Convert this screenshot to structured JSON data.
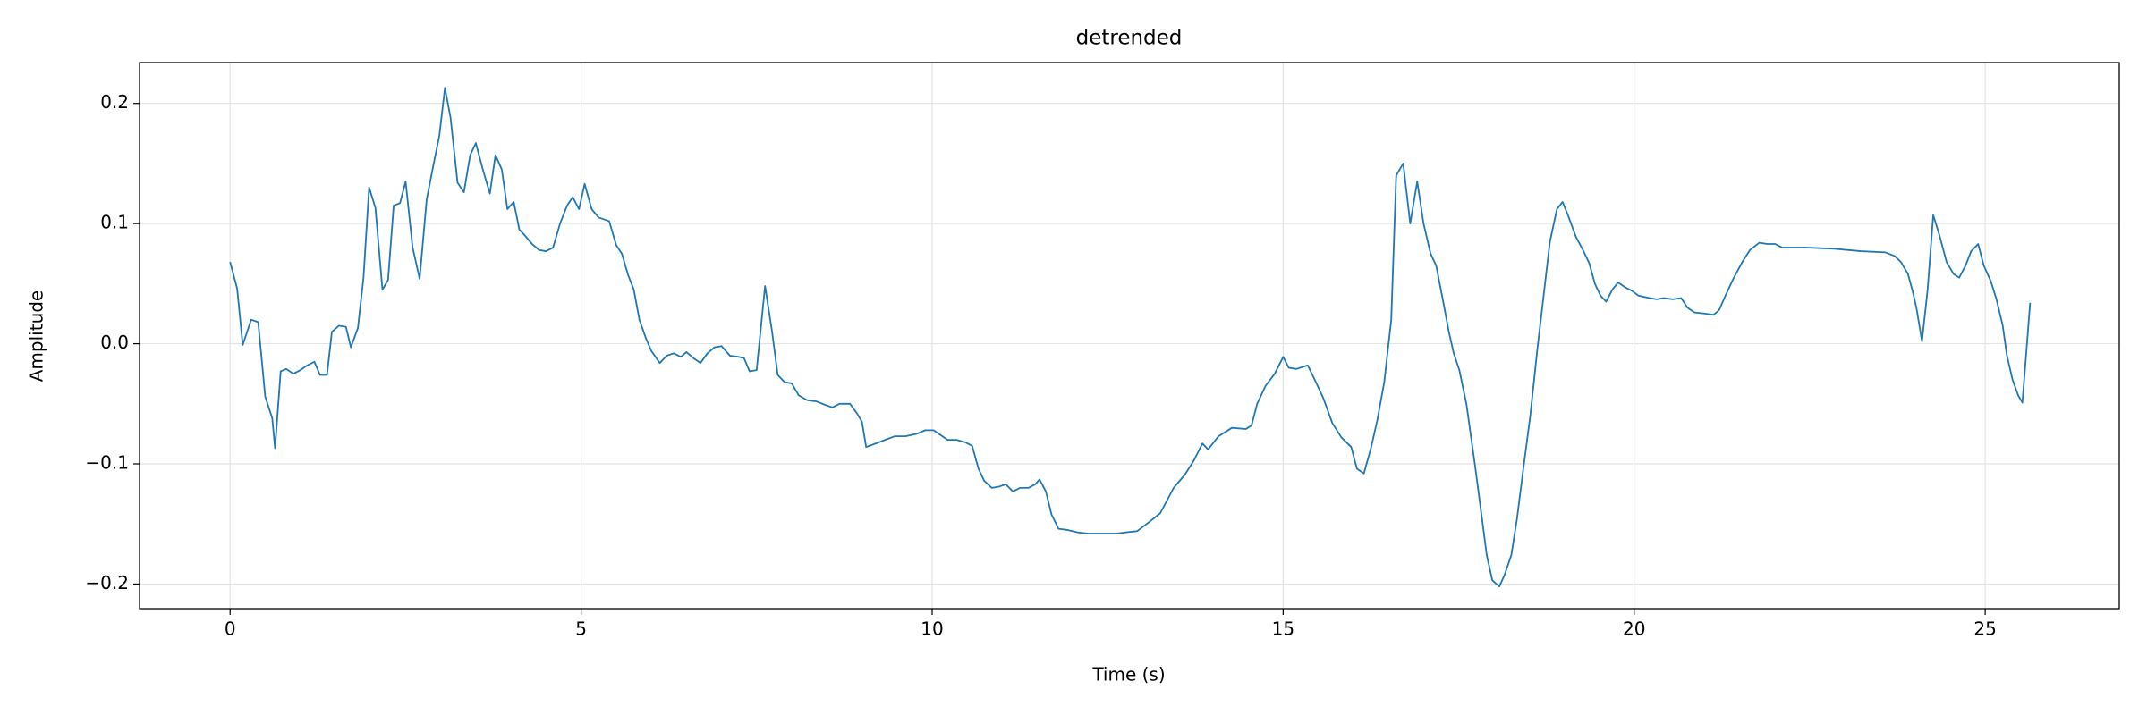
{
  "chart_data": {
    "type": "line",
    "title": "detrended",
    "x_label": "Time (s)",
    "y_label": "Amplitude",
    "xlim": [
      -1.29,
      26.91
    ],
    "ylim": [
      -0.2205,
      0.234
    ],
    "xticks": [
      0,
      5,
      10,
      15,
      20,
      25
    ],
    "yticks": [
      {
        "value": -0.2,
        "label": "−0.2"
      },
      {
        "value": -0.1,
        "label": "−0.1"
      },
      {
        "value": 0,
        "label": "0.0"
      },
      0.1,
      0.2
    ],
    "grid": true,
    "series": [
      {
        "color": "#1f77b4",
        "x": [
          0,
          0.1,
          0.18,
          0.3,
          0.4,
          0.5,
          0.6,
          0.64,
          0.72,
          0.8,
          0.9,
          1.0,
          1.1,
          1.2,
          1.28,
          1.38,
          1.45,
          1.55,
          1.65,
          1.72,
          1.82,
          1.9,
          1.98,
          2.07,
          2.17,
          2.25,
          2.33,
          2.42,
          2.5,
          2.6,
          2.7,
          2.8,
          2.9,
          2.98,
          3.06,
          3.14,
          3.24,
          3.33,
          3.42,
          3.5,
          3.6,
          3.7,
          3.78,
          3.87,
          3.95,
          4.04,
          4.12,
          4.2,
          4.3,
          4.4,
          4.5,
          4.6,
          4.7,
          4.8,
          4.88,
          4.97,
          5.05,
          5.15,
          5.25,
          5.4,
          5.5,
          5.58,
          5.67,
          5.75,
          5.83,
          5.92,
          6.0,
          6.12,
          6.22,
          6.32,
          6.42,
          6.5,
          6.6,
          6.7,
          6.8,
          6.9,
          7.0,
          7.12,
          7.25,
          7.32,
          7.4,
          7.5,
          7.62,
          7.72,
          7.8,
          7.9,
          8.0,
          8.1,
          8.22,
          8.35,
          8.48,
          8.58,
          8.68,
          8.83,
          8.93,
          9.0,
          9.06,
          9.2,
          9.33,
          9.47,
          9.62,
          9.78,
          9.9,
          10.02,
          10.12,
          10.22,
          10.35,
          10.47,
          10.57,
          10.66,
          10.74,
          10.85,
          10.95,
          11.05,
          11.15,
          11.25,
          11.37,
          11.47,
          11.53,
          11.62,
          11.7,
          11.8,
          11.93,
          12.07,
          12.23,
          12.43,
          12.62,
          12.76,
          12.92,
          13.1,
          13.25,
          13.44,
          13.6,
          13.73,
          13.85,
          13.93,
          14.08,
          14.27,
          14.47,
          14.55,
          14.63,
          14.75,
          14.88,
          15.0,
          15.08,
          15.19,
          15.35,
          15.45,
          15.57,
          15.7,
          15.83,
          15.97,
          16.05,
          16.15,
          16.25,
          16.34,
          16.44,
          16.54,
          16.61,
          16.71,
          16.81,
          16.91,
          17.0,
          17.1,
          17.18,
          17.28,
          17.36,
          17.43,
          17.51,
          17.61,
          17.73,
          17.82,
          17.9,
          17.98,
          18.08,
          18.15,
          18.25,
          18.33,
          18.43,
          18.52,
          18.62,
          18.72,
          18.8,
          18.9,
          18.98,
          19.07,
          19.17,
          19.27,
          19.36,
          19.44,
          19.52,
          19.6,
          19.69,
          19.77,
          19.87,
          19.97,
          20.06,
          20.22,
          20.32,
          20.42,
          20.55,
          20.67,
          20.76,
          20.86,
          21.02,
          21.13,
          21.21,
          21.3,
          21.42,
          21.54,
          21.65,
          21.78,
          21.9,
          22.01,
          22.11,
          22.46,
          22.85,
          23.23,
          23.58,
          23.71,
          23.8,
          23.9,
          23.97,
          24.02,
          24.1,
          24.18,
          24.26,
          24.35,
          24.45,
          24.55,
          24.63,
          24.72,
          24.8,
          24.9,
          24.98,
          25.08,
          25.16,
          25.25,
          25.31,
          25.39,
          25.47,
          25.53,
          25.64
        ],
        "values": [
          0.068,
          0.046,
          -0.001,
          0.02,
          0.018,
          -0.044,
          -0.062,
          -0.087,
          -0.023,
          -0.021,
          -0.025,
          -0.022,
          -0.018,
          -0.015,
          -0.026,
          -0.026,
          0.01,
          0.015,
          0.014,
          -0.003,
          0.013,
          0.055,
          0.13,
          0.113,
          0.045,
          0.053,
          0.115,
          0.117,
          0.135,
          0.08,
          0.054,
          0.12,
          0.15,
          0.173,
          0.213,
          0.188,
          0.134,
          0.126,
          0.157,
          0.167,
          0.145,
          0.125,
          0.157,
          0.145,
          0.112,
          0.118,
          0.095,
          0.09,
          0.083,
          0.078,
          0.077,
          0.08,
          0.1,
          0.115,
          0.122,
          0.112,
          0.133,
          0.112,
          0.105,
          0.102,
          0.082,
          0.075,
          0.057,
          0.045,
          0.02,
          0.005,
          -0.006,
          -0.016,
          -0.01,
          -0.008,
          -0.011,
          -0.007,
          -0.012,
          -0.016,
          -0.008,
          -0.003,
          -0.002,
          -0.01,
          -0.011,
          -0.012,
          -0.023,
          -0.022,
          0.048,
          0.01,
          -0.026,
          -0.032,
          -0.033,
          -0.043,
          -0.047,
          -0.048,
          -0.051,
          -0.053,
          -0.05,
          -0.05,
          -0.058,
          -0.065,
          -0.086,
          -0.083,
          -0.08,
          -0.077,
          -0.077,
          -0.075,
          -0.072,
          -0.072,
          -0.076,
          -0.08,
          -0.08,
          -0.082,
          -0.085,
          -0.104,
          -0.114,
          -0.12,
          -0.119,
          -0.117,
          -0.123,
          -0.12,
          -0.12,
          -0.117,
          -0.113,
          -0.123,
          -0.142,
          -0.154,
          -0.155,
          -0.157,
          -0.158,
          -0.158,
          -0.158,
          -0.157,
          -0.156,
          -0.148,
          -0.141,
          -0.12,
          -0.109,
          -0.097,
          -0.083,
          -0.088,
          -0.077,
          -0.07,
          -0.071,
          -0.068,
          -0.05,
          -0.035,
          -0.025,
          -0.011,
          -0.02,
          -0.021,
          -0.018,
          -0.03,
          -0.045,
          -0.066,
          -0.078,
          -0.086,
          -0.104,
          -0.108,
          -0.087,
          -0.064,
          -0.032,
          0.02,
          0.14,
          0.15,
          0.1,
          0.135,
          0.1,
          0.075,
          0.065,
          0.035,
          0.01,
          -0.008,
          -0.022,
          -0.05,
          -0.1,
          -0.14,
          -0.176,
          -0.197,
          -0.202,
          -0.193,
          -0.176,
          -0.146,
          -0.1,
          -0.06,
          -0.005,
          0.045,
          0.085,
          0.112,
          0.118,
          0.105,
          0.089,
          0.078,
          0.067,
          0.05,
          0.04,
          0.035,
          0.045,
          0.051,
          0.047,
          0.044,
          0.04,
          0.038,
          0.037,
          0.038,
          0.037,
          0.038,
          0.03,
          0.026,
          0.025,
          0.024,
          0.028,
          0.04,
          0.055,
          0.068,
          0.078,
          0.084,
          0.083,
          0.083,
          0.08,
          0.08,
          0.079,
          0.077,
          0.076,
          0.073,
          0.068,
          0.058,
          0.043,
          0.03,
          0.002,
          0.045,
          0.107,
          0.09,
          0.068,
          0.058,
          0.055,
          0.065,
          0.077,
          0.083,
          0.065,
          0.052,
          0.037,
          0.015,
          -0.01,
          -0.03,
          -0.043,
          -0.049,
          0.034
        ]
      }
    ]
  }
}
